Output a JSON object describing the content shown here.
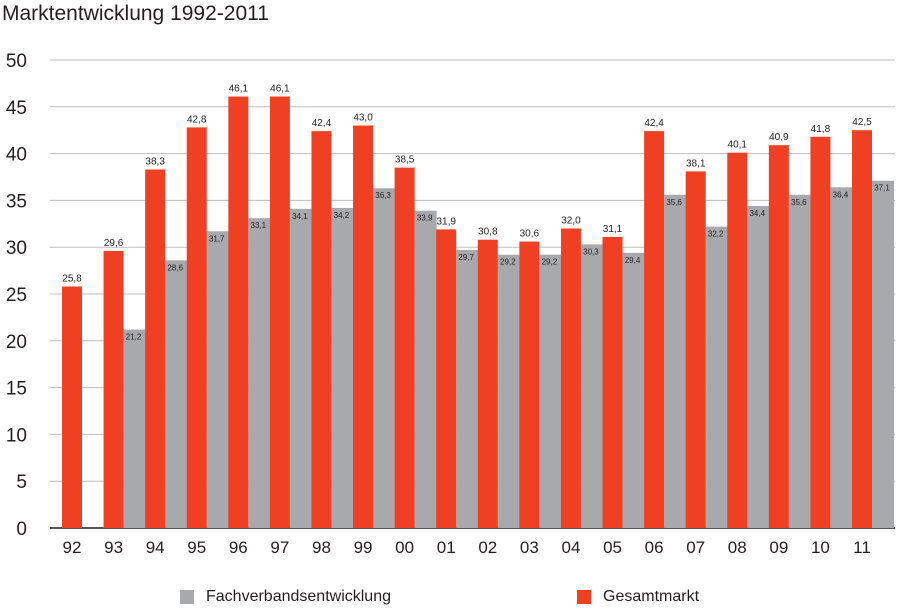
{
  "chart_data": {
    "type": "bar",
    "title": "Marktentwicklung 1992-2011",
    "categories": [
      "92",
      "93",
      "94",
      "95",
      "96",
      "97",
      "98",
      "99",
      "00",
      "01",
      "02",
      "03",
      "04",
      "05",
      "06",
      "07",
      "08",
      "09",
      "10",
      "11"
    ],
    "ylim": [
      0,
      50
    ],
    "yticks": [
      "0",
      "5",
      "10",
      "15",
      "20",
      "25",
      "30",
      "35",
      "40",
      "45",
      "50"
    ],
    "grid": true,
    "legend_position": "bottom",
    "series": [
      {
        "name": "Fachverbandsentwicklung",
        "color": "#a7a9ac",
        "values": [
          null,
          21.2,
          28.6,
          31.7,
          33.1,
          34.1,
          34.2,
          36.3,
          33.9,
          29.7,
          29.2,
          29.2,
          30.3,
          29.4,
          35.6,
          32.2,
          34.4,
          35.6,
          36.4,
          37.1
        ],
        "labels": [
          "",
          "21,2",
          "28,6",
          "31,7",
          "33,1",
          "34,1",
          "34,2",
          "36,3",
          "33,9",
          "29,7",
          "29,2",
          "29,2",
          "30,3",
          "29,4",
          "35,6",
          "32,2",
          "34,4",
          "35,6",
          "36,4",
          "37,1"
        ]
      },
      {
        "name": "Gesamtmarkt",
        "color": "#ef4023",
        "values": [
          25.8,
          29.6,
          38.3,
          42.8,
          46.1,
          46.1,
          42.4,
          43.0,
          38.5,
          31.9,
          30.8,
          30.6,
          32.0,
          31.1,
          42.4,
          38.1,
          40.1,
          40.9,
          41.8,
          42.5
        ],
        "labels": [
          "25,8",
          "29,6",
          "38,3",
          "42,8",
          "46,1",
          "46,1",
          "42,4",
          "43,0",
          "38,5",
          "31,9",
          "30,8",
          "30,6",
          "32,0",
          "31,1",
          "42,4",
          "38,1",
          "40,1",
          "40,9",
          "41,8",
          "42,5"
        ]
      }
    ]
  }
}
